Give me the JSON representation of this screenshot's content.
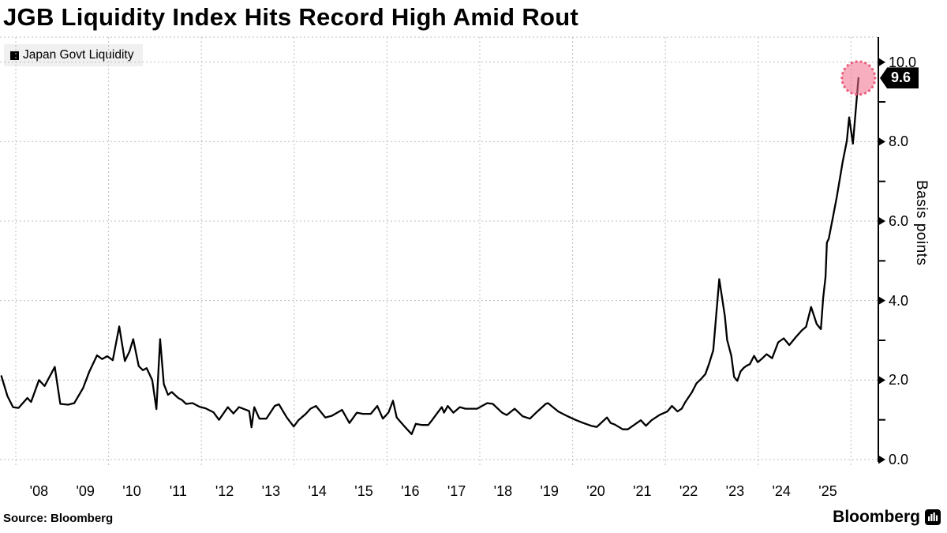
{
  "title": "JGB Liquidity Index Hits Record High Amid Rout",
  "legend": {
    "label": "Japan Govt Liquidity",
    "swatch_color": "#000000"
  },
  "source": "Source: Bloomberg",
  "branding": "Bloomberg",
  "last_point": {
    "label": "9.6",
    "value": 9.6,
    "t": 2026.16,
    "highlight_fill": "#f06e8c",
    "highlight_border": "#e85d7d"
  },
  "y_axis": {
    "unit_label": "Basis points",
    "major_ticks": [
      {
        "text": "10.0",
        "value": 10
      },
      {
        "text": "8.0",
        "value": 8
      },
      {
        "text": "6.0",
        "value": 6
      },
      {
        "text": "4.0",
        "value": 4
      },
      {
        "text": "2.0",
        "value": 2
      },
      {
        "text": "0.0",
        "value": 0
      }
    ],
    "minor_values": [
      9,
      7,
      5,
      3,
      1
    ]
  },
  "x_axis": {
    "ticks": [
      {
        "text": "'08",
        "year": 2008
      },
      {
        "text": "'09",
        "year": 2009
      },
      {
        "text": "'10",
        "year": 2010
      },
      {
        "text": "'11",
        "year": 2011
      },
      {
        "text": "'12",
        "year": 2012
      },
      {
        "text": "'13",
        "year": 2013
      },
      {
        "text": "'14",
        "year": 2014
      },
      {
        "text": "'15",
        "year": 2015
      },
      {
        "text": "'16",
        "year": 2016
      },
      {
        "text": "'17",
        "year": 2017
      },
      {
        "text": "'18",
        "year": 2018
      },
      {
        "text": "'19",
        "year": 2019
      },
      {
        "text": "'20",
        "year": 2020
      },
      {
        "text": "'21",
        "year": 2021
      },
      {
        "text": "'22",
        "year": 2022
      },
      {
        "text": "'23",
        "year": 2023
      },
      {
        "text": "'24",
        "year": 2024
      },
      {
        "text": "'25",
        "year": 2025
      }
    ]
  },
  "chart_data": {
    "type": "line",
    "title": "JGB Liquidity Index Hits Record High Amid Rout",
    "ylabel": "Basis points",
    "xlabel": "",
    "xlim": [
      2007.69,
      2026.55
    ],
    "ylim": [
      0,
      10.63
    ],
    "grid": "dashed",
    "legend_position": "top-left",
    "x_gridline_years": [
      2008,
      2010,
      2012,
      2014,
      2016,
      2018,
      2020,
      2022,
      2024,
      2026
    ],
    "y_gridlines": [
      0,
      2,
      4,
      6,
      8,
      10
    ],
    "line_color": "#000000",
    "grid_color": "#bdbdbd",
    "series": [
      {
        "name": "Japan Govt Liquidity",
        "color": "#000000",
        "points": [
          [
            2007.69,
            2.1
          ],
          [
            2007.82,
            1.6
          ],
          [
            2007.94,
            1.32
          ],
          [
            2008.06,
            1.3
          ],
          [
            2008.25,
            1.55
          ],
          [
            2008.33,
            1.45
          ],
          [
            2008.5,
            2.0
          ],
          [
            2008.62,
            1.85
          ],
          [
            2008.84,
            2.33
          ],
          [
            2008.96,
            1.4
          ],
          [
            2009.13,
            1.38
          ],
          [
            2009.26,
            1.42
          ],
          [
            2009.45,
            1.8
          ],
          [
            2009.58,
            2.2
          ],
          [
            2009.75,
            2.62
          ],
          [
            2009.86,
            2.53
          ],
          [
            2009.97,
            2.6
          ],
          [
            2010.09,
            2.5
          ],
          [
            2010.23,
            3.35
          ],
          [
            2010.35,
            2.48
          ],
          [
            2010.45,
            2.72
          ],
          [
            2010.53,
            3.03
          ],
          [
            2010.65,
            2.35
          ],
          [
            2010.74,
            2.25
          ],
          [
            2010.82,
            2.3
          ],
          [
            2010.94,
            2.0
          ],
          [
            2011.03,
            1.27
          ],
          [
            2011.11,
            3.03
          ],
          [
            2011.19,
            1.9
          ],
          [
            2011.28,
            1.63
          ],
          [
            2011.36,
            1.7
          ],
          [
            2011.5,
            1.55
          ],
          [
            2011.58,
            1.5
          ],
          [
            2011.67,
            1.4
          ],
          [
            2011.81,
            1.42
          ],
          [
            2011.96,
            1.33
          ],
          [
            2012.09,
            1.29
          ],
          [
            2012.26,
            1.19
          ],
          [
            2012.38,
            1.0
          ],
          [
            2012.57,
            1.32
          ],
          [
            2012.69,
            1.16
          ],
          [
            2012.81,
            1.32
          ],
          [
            2013.03,
            1.22
          ],
          [
            2013.08,
            0.81
          ],
          [
            2013.14,
            1.32
          ],
          [
            2013.25,
            1.03
          ],
          [
            2013.4,
            1.03
          ],
          [
            2013.58,
            1.35
          ],
          [
            2013.67,
            1.39
          ],
          [
            2013.84,
            1.06
          ],
          [
            2013.99,
            0.83
          ],
          [
            2014.09,
            0.99
          ],
          [
            2014.25,
            1.15
          ],
          [
            2014.35,
            1.28
          ],
          [
            2014.47,
            1.35
          ],
          [
            2014.67,
            1.06
          ],
          [
            2014.81,
            1.1
          ],
          [
            2015.03,
            1.25
          ],
          [
            2015.19,
            0.92
          ],
          [
            2015.35,
            1.18
          ],
          [
            2015.48,
            1.15
          ],
          [
            2015.65,
            1.15
          ],
          [
            2015.79,
            1.35
          ],
          [
            2015.91,
            1.03
          ],
          [
            2016.03,
            1.18
          ],
          [
            2016.13,
            1.48
          ],
          [
            2016.21,
            1.06
          ],
          [
            2016.38,
            0.83
          ],
          [
            2016.53,
            0.64
          ],
          [
            2016.62,
            0.9
          ],
          [
            2016.75,
            0.87
          ],
          [
            2016.89,
            0.87
          ],
          [
            2016.97,
            0.99
          ],
          [
            2017.09,
            1.18
          ],
          [
            2017.18,
            1.32
          ],
          [
            2017.23,
            1.18
          ],
          [
            2017.31,
            1.35
          ],
          [
            2017.43,
            1.18
          ],
          [
            2017.57,
            1.32
          ],
          [
            2017.69,
            1.28
          ],
          [
            2017.94,
            1.28
          ],
          [
            2018.16,
            1.42
          ],
          [
            2018.28,
            1.4
          ],
          [
            2018.48,
            1.18
          ],
          [
            2018.58,
            1.12
          ],
          [
            2018.75,
            1.28
          ],
          [
            2018.92,
            1.09
          ],
          [
            2019.08,
            1.03
          ],
          [
            2019.25,
            1.22
          ],
          [
            2019.42,
            1.4
          ],
          [
            2019.47,
            1.42
          ],
          [
            2019.69,
            1.21
          ],
          [
            2019.89,
            1.09
          ],
          [
            2020.06,
            1.0
          ],
          [
            2020.23,
            0.92
          ],
          [
            2020.4,
            0.85
          ],
          [
            2020.52,
            0.82
          ],
          [
            2020.74,
            1.06
          ],
          [
            2020.82,
            0.92
          ],
          [
            2020.91,
            0.88
          ],
          [
            2021.08,
            0.76
          ],
          [
            2021.19,
            0.76
          ],
          [
            2021.47,
            0.99
          ],
          [
            2021.58,
            0.85
          ],
          [
            2021.7,
            0.99
          ],
          [
            2021.87,
            1.12
          ],
          [
            2022.04,
            1.21
          ],
          [
            2022.14,
            1.35
          ],
          [
            2022.26,
            1.21
          ],
          [
            2022.35,
            1.28
          ],
          [
            2022.43,
            1.45
          ],
          [
            2022.57,
            1.69
          ],
          [
            2022.67,
            1.92
          ],
          [
            2022.77,
            2.03
          ],
          [
            2022.86,
            2.15
          ],
          [
            2022.94,
            2.41
          ],
          [
            2023.03,
            2.75
          ],
          [
            2023.16,
            4.54
          ],
          [
            2023.28,
            3.61
          ],
          [
            2023.33,
            3.01
          ],
          [
            2023.42,
            2.61
          ],
          [
            2023.48,
            2.08
          ],
          [
            2023.55,
            1.98
          ],
          [
            2023.62,
            2.22
          ],
          [
            2023.69,
            2.31
          ],
          [
            2023.75,
            2.36
          ],
          [
            2023.82,
            2.4
          ],
          [
            2023.91,
            2.61
          ],
          [
            2023.99,
            2.45
          ],
          [
            2024.09,
            2.55
          ],
          [
            2024.18,
            2.65
          ],
          [
            2024.3,
            2.55
          ],
          [
            2024.43,
            2.95
          ],
          [
            2024.55,
            3.05
          ],
          [
            2024.67,
            2.88
          ],
          [
            2024.81,
            3.08
          ],
          [
            2024.94,
            3.25
          ],
          [
            2025.03,
            3.34
          ],
          [
            2025.14,
            3.84
          ],
          [
            2025.26,
            3.41
          ],
          [
            2025.35,
            3.28
          ],
          [
            2025.4,
            4.07
          ],
          [
            2025.45,
            4.6
          ],
          [
            2025.48,
            5.46
          ],
          [
            2025.52,
            5.56
          ],
          [
            2025.69,
            6.59
          ],
          [
            2025.82,
            7.49
          ],
          [
            2025.91,
            8.02
          ],
          [
            2025.96,
            8.61
          ],
          [
            2026.04,
            7.95
          ],
          [
            2026.16,
            9.6
          ]
        ]
      }
    ]
  }
}
